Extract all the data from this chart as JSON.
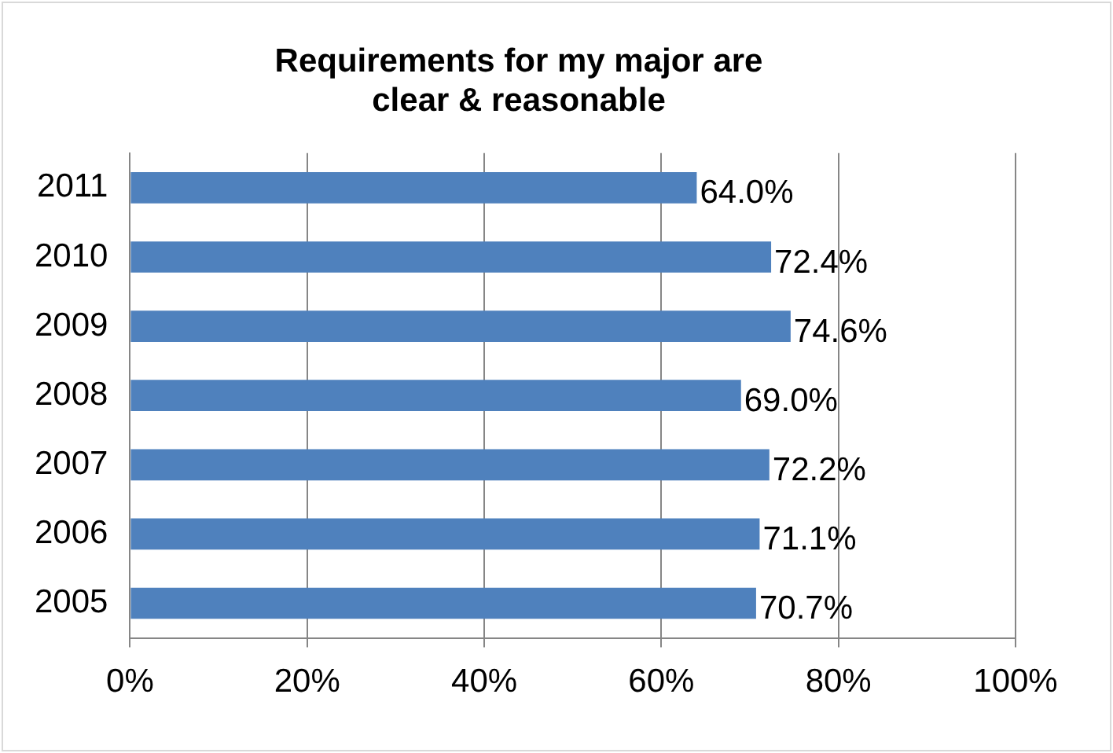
{
  "chart_data": {
    "type": "bar",
    "orientation": "horizontal",
    "title": "Requirements for my major are\nclear & reasonable",
    "categories": [
      "2011",
      "2010",
      "2009",
      "2008",
      "2007",
      "2006",
      "2005"
    ],
    "values": [
      64.0,
      72.4,
      74.6,
      69.0,
      72.2,
      71.1,
      70.7
    ],
    "value_labels": [
      "64.0%",
      "72.4%",
      "74.6%",
      "69.0%",
      "72.2%",
      "71.1%",
      "70.7%"
    ],
    "color": "#4f81bd",
    "xlim": [
      0,
      100
    ],
    "xticks": [
      {
        "value": 0,
        "label": "0%"
      },
      {
        "value": 20,
        "label": "20%"
      },
      {
        "value": 40,
        "label": "40%"
      },
      {
        "value": 60,
        "label": "60%"
      },
      {
        "value": 80,
        "label": "80%"
      },
      {
        "value": 100,
        "label": "100%"
      }
    ],
    "grid": "x"
  }
}
